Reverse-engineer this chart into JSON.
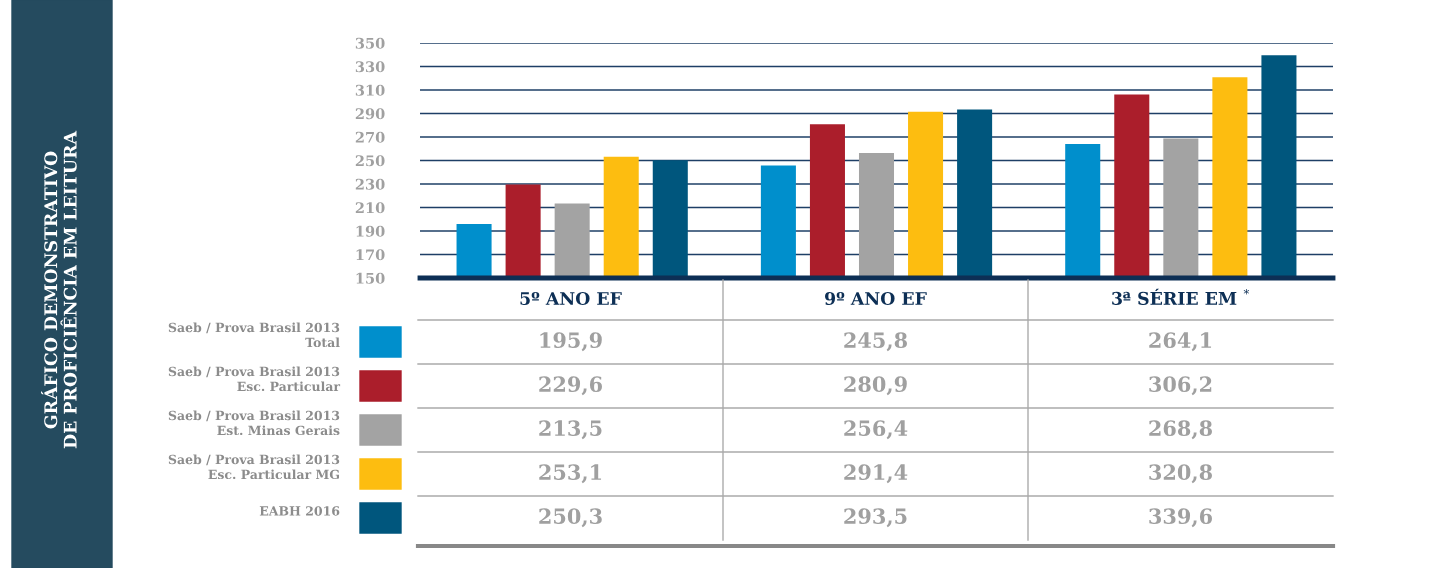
{
  "chart_data": {
    "type": "bar",
    "title": "GRÁFICO DEMONSTRATIVO\nDE PROFICIÊNCIA EM LEITURA",
    "categories": [
      "5º ANO EF",
      "9º ANO EF",
      "3ª SÉRIE EM $^{*}$"
    ],
    "series": [
      {
        "name": "Saeb / Prova Brasil 2013\nTotal",
        "color": "#008fcc",
        "values": [
          195.9,
          245.8,
          264.1
        ],
        "value_labels": [
          "195,9",
          "245,8",
          "264,1"
        ]
      },
      {
        "name": "Saeb / Prova Brasil 2013\nEsc. Particular",
        "color": "#ab1e2b",
        "values": [
          229.6,
          280.9,
          306.2
        ],
        "value_labels": [
          "229,6",
          "280,9",
          "306,2"
        ]
      },
      {
        "name": "Saeb / Prova Brasil 2013\nEst. Minas Gerais",
        "color": "#a3a3a3",
        "values": [
          213.5,
          256.4,
          268.8
        ],
        "value_labels": [
          "213,5",
          "256,4",
          "268,8"
        ]
      },
      {
        "name": "Saeb / Prova Brasil 2013\nEsc. Particular MG",
        "color": "#fdbd10",
        "values": [
          253.1,
          291.4,
          320.8
        ],
        "value_labels": [
          "253,1",
          "291,4",
          "320,8"
        ]
      },
      {
        "name": "EABH 2016",
        "color": "#00567d",
        "values": [
          250.3,
          293.5,
          339.6
        ],
        "value_labels": [
          "250,3",
          "293,5",
          "339,6"
        ]
      }
    ],
    "ylim": [
      150,
      350
    ],
    "yticks": [
      150,
      170,
      190,
      210,
      230,
      250,
      270,
      290,
      310,
      330,
      350
    ],
    "grid": "y",
    "legend": "bottom left"
  }
}
